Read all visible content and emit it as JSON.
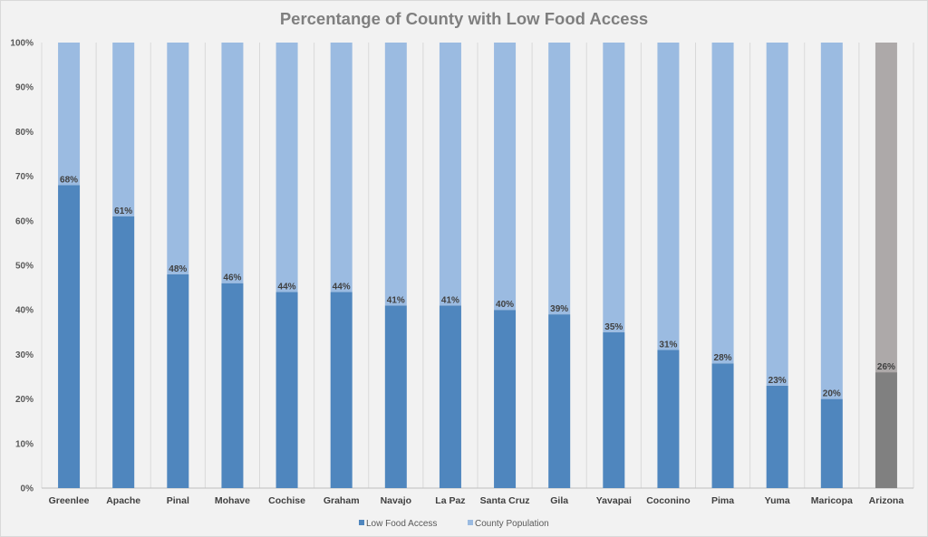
{
  "chart_data": {
    "type": "bar",
    "stacked": true,
    "title": "Percentange of County with Low Food Access",
    "categories": [
      "Greenlee",
      "Apache",
      "Pinal",
      "Mohave",
      "Cochise",
      "Graham",
      "Navajo",
      "La Paz",
      "Santa Cruz",
      "Gila",
      "Yavapai",
      "Coconino",
      "Pima",
      "Yuma",
      "Maricopa",
      "Arizona"
    ],
    "series": [
      {
        "name": "Low Food Access",
        "values": [
          68,
          61,
          48,
          46,
          44,
          44,
          41,
          41,
          40,
          39,
          35,
          31,
          28,
          23,
          20,
          26
        ],
        "color": "#4f86be"
      },
      {
        "name": "County Population",
        "values": [
          32,
          39,
          52,
          54,
          56,
          56,
          59,
          59,
          60,
          61,
          65,
          69,
          72,
          77,
          80,
          74
        ],
        "color": "#9bbbe1"
      }
    ],
    "data_labels": [
      "68%",
      "61%",
      "48%",
      "46%",
      "44%",
      "44%",
      "41%",
      "41%",
      "40%",
      "39%",
      "35%",
      "31%",
      "28%",
      "23%",
      "20%",
      "26%"
    ],
    "highlight": {
      "category": "Arizona",
      "colors": [
        "#808080",
        "#ada9a9"
      ]
    },
    "yticks": [
      "0%",
      "10%",
      "20%",
      "30%",
      "40%",
      "50%",
      "60%",
      "70%",
      "80%",
      "90%",
      "100%"
    ],
    "ylim": [
      0,
      100
    ],
    "grid": "vertical category separators",
    "legend_position": "bottom"
  }
}
